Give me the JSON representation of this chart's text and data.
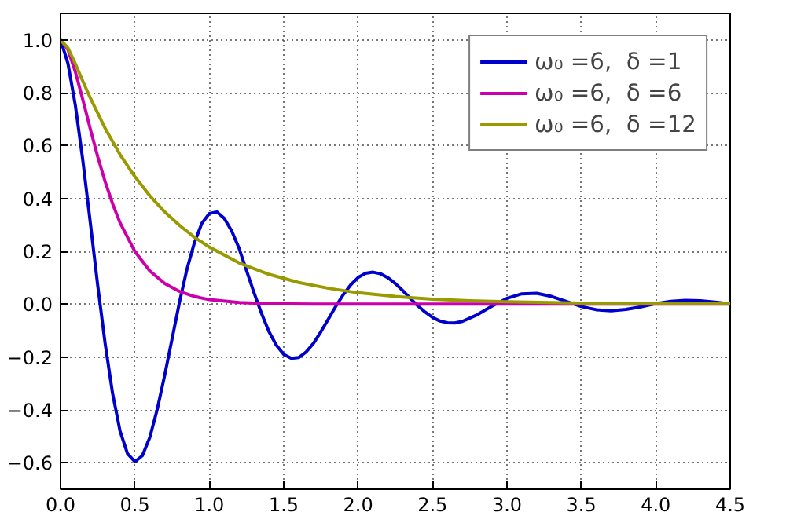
{
  "chart_data": {
    "type": "line",
    "xlim": [
      0,
      4.5
    ],
    "ylim": [
      -0.7,
      1.1
    ],
    "xticks": [
      {
        "value": 0,
        "label": "0.0"
      },
      {
        "value": 0.5,
        "label": "0.5"
      },
      {
        "value": 1,
        "label": "1.0"
      },
      {
        "value": 1.5,
        "label": "1.5"
      },
      {
        "value": 2,
        "label": "2.0"
      },
      {
        "value": 2.5,
        "label": "2.5"
      },
      {
        "value": 3,
        "label": "3.0"
      },
      {
        "value": 3.5,
        "label": "3.5"
      },
      {
        "value": 4,
        "label": "4.0"
      },
      {
        "value": 4.5,
        "label": "4.5"
      }
    ],
    "yticks": [
      {
        "value": -0.6,
        "label": "−0.6"
      },
      {
        "value": -0.4,
        "label": "−0.4"
      },
      {
        "value": -0.2,
        "label": "−0.2"
      },
      {
        "value": 0,
        "label": "0.0"
      },
      {
        "value": 0.2,
        "label": "0.2"
      },
      {
        "value": 0.4,
        "label": "0.4"
      },
      {
        "value": 0.6,
        "label": "0.6"
      },
      {
        "value": 0.8,
        "label": "0.8"
      },
      {
        "value": 1.0,
        "label": "1.0"
      }
    ],
    "grid": true,
    "legend": "top right",
    "line_style": "solid",
    "series": [
      {
        "name": "ω₀ =6,  δ =1",
        "color": "#0000cc",
        "x": [
          0,
          0.05,
          0.1,
          0.15,
          0.2,
          0.25,
          0.3,
          0.35,
          0.4,
          0.45,
          0.5,
          0.55,
          0.6,
          0.65,
          0.7,
          0.75,
          0.8,
          0.85,
          0.9,
          0.95,
          1.0,
          1.05,
          1.1,
          1.15,
          1.2,
          1.25,
          1.3,
          1.35,
          1.4,
          1.45,
          1.5,
          1.55,
          1.6,
          1.65,
          1.7,
          1.75,
          1.8,
          1.85,
          1.9,
          1.95,
          2.0,
          2.05,
          2.1,
          2.15,
          2.2,
          2.25,
          2.3,
          2.35,
          2.4,
          2.45,
          2.5,
          2.55,
          2.6,
          2.65,
          2.7,
          2.8,
          2.9,
          3.0,
          3.1,
          3.2,
          3.3,
          3.4,
          3.5,
          3.6,
          3.7,
          3.8,
          3.9,
          4.0,
          4.1,
          4.2,
          4.3,
          4.4,
          4.5
        ],
        "values": [
          1,
          0.91,
          0.751,
          0.543,
          0.309,
          0.071,
          -0.15,
          -0.338,
          -0.48,
          -0.565,
          -0.596,
          -0.573,
          -0.504,
          -0.398,
          -0.269,
          -0.13,
          0.009,
          0.133,
          0.233,
          0.306,
          0.343,
          0.349,
          0.325,
          0.277,
          0.211,
          0.127,
          0.044,
          -0.034,
          -0.103,
          -0.155,
          -0.19,
          -0.205,
          -0.202,
          -0.181,
          -0.148,
          -0.104,
          -0.056,
          -0.008,
          0.036,
          0.073,
          0.101,
          0.117,
          0.121,
          0.115,
          0.1,
          0.078,
          0.051,
          0.022,
          -0.006,
          -0.03,
          -0.05,
          -0.064,
          -0.07,
          -0.071,
          -0.065,
          -0.04,
          -0.007,
          0.022,
          0.039,
          0.041,
          0.029,
          0.01,
          -0.009,
          -0.021,
          -0.025,
          -0.02,
          -0.01,
          0.002,
          0.011,
          0.014,
          0.013,
          0.008,
          0.001
        ]
      },
      {
        "name": "ω₀ =6,  δ =6",
        "color": "#cc00aa",
        "x": [
          0,
          0.05,
          0.1,
          0.15,
          0.2,
          0.25,
          0.3,
          0.35,
          0.4,
          0.5,
          0.6,
          0.7,
          0.8,
          0.9,
          1.0,
          1.2,
          1.4,
          1.7,
          2.5,
          3.5,
          4.5
        ],
        "values": [
          1,
          0.963,
          0.878,
          0.773,
          0.663,
          0.558,
          0.463,
          0.38,
          0.308,
          0.199,
          0.126,
          0.078,
          0.048,
          0.029,
          0.017,
          0.006,
          0.002,
          0.0,
          0.0,
          0.0,
          0.0
        ]
      },
      {
        "name": "ω₀ =6,  δ =12",
        "color": "#999900",
        "x": [
          0,
          0.05,
          0.1,
          0.15,
          0.2,
          0.3,
          0.4,
          0.5,
          0.6,
          0.7,
          0.8,
          0.9,
          1.0,
          1.2,
          1.4,
          1.6,
          1.8,
          2.0,
          2.25,
          2.5,
          2.75,
          3.0,
          3.5,
          4.0,
          4.5
        ],
        "values": [
          1,
          0.969,
          0.909,
          0.843,
          0.78,
          0.665,
          0.566,
          0.482,
          0.41,
          0.349,
          0.298,
          0.253,
          0.216,
          0.156,
          0.113,
          0.082,
          0.06,
          0.043,
          0.029,
          0.019,
          0.013,
          0.009,
          0.004,
          0.002,
          0.001
        ]
      }
    ]
  }
}
